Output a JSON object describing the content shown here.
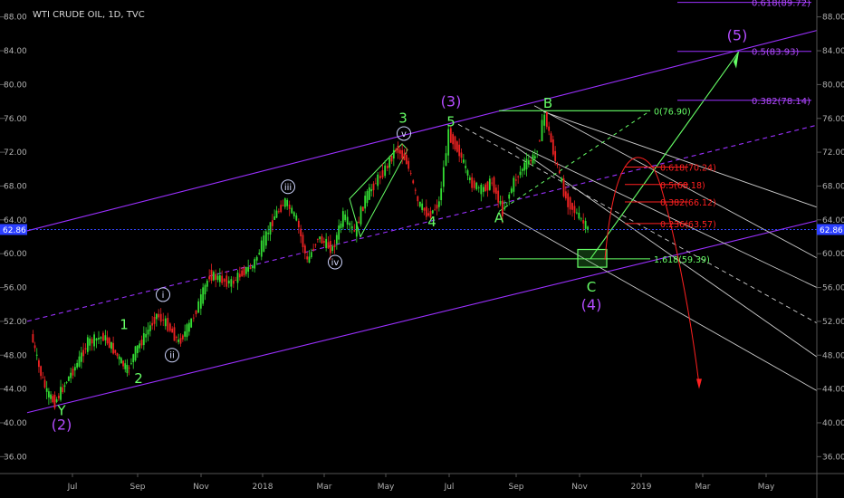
{
  "header": {
    "symbol_title": "WTI CRUDE OIL, 1D, TVC"
  },
  "colors": {
    "background": "#000000",
    "channel": "#9b30ff",
    "wave_green": "#66ff66",
    "wave_purple": "#b44cff",
    "projection_red": "#ff2020",
    "fan_white": "#cccccc",
    "price_line": "#3344ff",
    "price_badge": "#2b3fff"
  },
  "current_price": {
    "value": 62.86,
    "label": "62.86"
  },
  "chart_data": {
    "type": "line",
    "title": "WTI CRUDE OIL, 1D, TVC",
    "xlabel": "",
    "ylabel": "",
    "ylim": [
      34,
      90
    ],
    "y_ticks": [
      36,
      40,
      44,
      48,
      52,
      56,
      60,
      64,
      68,
      72,
      76,
      80,
      84,
      88
    ],
    "y_tick_labels": [
      "36.00",
      "40.00",
      "44.00",
      "48.00",
      "52.00",
      "56.00",
      "60.00",
      "64.00",
      "68.00",
      "72.00",
      "76.00",
      "80.00",
      "84.00",
      "88.00"
    ],
    "x_tick_labels": [
      "Jul",
      "Sep",
      "Nov",
      "2018",
      "Mar",
      "May",
      "Jul",
      "Sep",
      "Nov",
      "2019",
      "Mar",
      "May"
    ],
    "price_path": [
      {
        "t": "Jun-2017",
        "v": 50.5
      },
      {
        "t": "Jun-2017",
        "v": 46.5
      },
      {
        "t": "Jun-2017",
        "v": 43.5
      },
      {
        "t": "Jun-2017",
        "v": 42.4
      },
      {
        "t": "Jul-2017",
        "v": 45.0
      },
      {
        "t": "Jul-2017",
        "v": 47.0
      },
      {
        "t": "Jul-2017",
        "v": 49.5
      },
      {
        "t": "Aug-2017",
        "v": 50.2
      },
      {
        "t": "Aug-2017",
        "v": 49.0
      },
      {
        "t": "Aug-2017",
        "v": 47.5
      },
      {
        "t": "Aug-2017",
        "v": 46.2
      },
      {
        "t": "Sep-2017",
        "v": 48.5
      },
      {
        "t": "Sep-2017",
        "v": 50.5
      },
      {
        "t": "Sep-2017",
        "v": 52.8
      },
      {
        "t": "Oct-2017",
        "v": 51.5
      },
      {
        "t": "Oct-2017",
        "v": 49.5
      },
      {
        "t": "Oct-2017",
        "v": 51.5
      },
      {
        "t": "Nov-2017",
        "v": 54.0
      },
      {
        "t": "Nov-2017",
        "v": 57.5
      },
      {
        "t": "Nov-2017",
        "v": 57.0
      },
      {
        "t": "Dec-2017",
        "v": 56.5
      },
      {
        "t": "Dec-2017",
        "v": 57.8
      },
      {
        "t": "Dec-2017",
        "v": 58.5
      },
      {
        "t": "Jan-2018",
        "v": 61.5
      },
      {
        "t": "Jan-2018",
        "v": 64.5
      },
      {
        "t": "Jan-2018",
        "v": 66.2
      },
      {
        "t": "Feb-2018",
        "v": 64.0
      },
      {
        "t": "Feb-2018",
        "v": 59.0
      },
      {
        "t": "Feb-2018",
        "v": 62.0
      },
      {
        "t": "Mar-2018",
        "v": 61.5
      },
      {
        "t": "Mar-2018",
        "v": 60.5
      },
      {
        "t": "Mar-2018",
        "v": 64.5
      },
      {
        "t": "Apr-2018",
        "v": 62.5
      },
      {
        "t": "Apr-2018",
        "v": 66.5
      },
      {
        "t": "Apr-2018",
        "v": 68.5
      },
      {
        "t": "May-2018",
        "v": 70.0
      },
      {
        "t": "May-2018",
        "v": 72.5
      },
      {
        "t": "May-2018",
        "v": 71.0
      },
      {
        "t": "Jun-2018",
        "v": 66.0
      },
      {
        "t": "Jun-2018",
        "v": 64.5
      },
      {
        "t": "Jun-2018",
        "v": 66.0
      },
      {
        "t": "Jul-2018",
        "v": 74.2
      },
      {
        "t": "Jul-2018",
        "v": 72.0
      },
      {
        "t": "Jul-2018",
        "v": 68.5
      },
      {
        "t": "Aug-2018",
        "v": 67.5
      },
      {
        "t": "Aug-2018",
        "v": 68.5
      },
      {
        "t": "Aug-2018",
        "v": 65.0
      },
      {
        "t": "Sep-2018",
        "v": 68.5
      },
      {
        "t": "Sep-2018",
        "v": 70.5
      },
      {
        "t": "Sep-2018",
        "v": 71.5
      },
      {
        "t": "Oct-2018",
        "v": 76.4
      },
      {
        "t": "Oct-2018",
        "v": 71.0
      },
      {
        "t": "Oct-2018",
        "v": 66.5
      },
      {
        "t": "Nov-2018",
        "v": 62.86
      }
    ],
    "wave_labels": [
      {
        "text": "Y",
        "style": "green",
        "t": "Jun-2017",
        "v": 42.4
      },
      {
        "text": "(2)",
        "style": "purple",
        "t": "Jun-2017",
        "v": 42.4
      },
      {
        "text": "1",
        "style": "green",
        "t": "Aug-2017",
        "v": 50.2
      },
      {
        "text": "2",
        "style": "green",
        "t": "Aug-2017",
        "v": 46.2
      },
      {
        "text": "i",
        "style": "circle",
        "t": "Sep-2017",
        "v": 52.8
      },
      {
        "text": "ii",
        "style": "circle",
        "t": "Oct-2017",
        "v": 49.5
      },
      {
        "text": "iii",
        "style": "circle",
        "t": "Jan-2018",
        "v": 66.2
      },
      {
        "text": "iv",
        "style": "circle",
        "t": "Mar-2018",
        "v": 60.5
      },
      {
        "text": "v",
        "style": "circle",
        "t": "May-2018",
        "v": 72.5
      },
      {
        "text": "3",
        "style": "green",
        "t": "May-2018",
        "v": 72.5
      },
      {
        "text": "4",
        "style": "green",
        "t": "Jun-2018",
        "v": 64.5
      },
      {
        "text": "5",
        "style": "green",
        "t": "Jul-2018",
        "v": 74.2
      },
      {
        "text": "(3)",
        "style": "purple",
        "t": "Jul-2018",
        "v": 74.2
      },
      {
        "text": "A",
        "style": "green",
        "t": "Aug-2018",
        "v": 65.0
      },
      {
        "text": "B",
        "style": "green",
        "t": "Oct-2018",
        "v": 76.4
      },
      {
        "text": "C",
        "style": "green",
        "t": "Nov-2018",
        "v": 59.39
      },
      {
        "text": "(4)",
        "style": "purple",
        "t": "Nov-2018",
        "v": 59.39
      },
      {
        "text": "(5)",
        "style": "purple",
        "t": "Apr-2019",
        "v": 83.93
      }
    ],
    "fib_extension_levels": [
      {
        "label": "0.618(89.72)",
        "value": 89.72
      },
      {
        "label": "0.5(83.93)",
        "value": 83.93
      },
      {
        "label": "0.382(78.14)",
        "value": 78.14
      }
    ],
    "fib_retracement_levels": [
      {
        "label": "0.618(70.24)",
        "value": 70.24
      },
      {
        "label": "0.5(68.18)",
        "value": 68.18
      },
      {
        "label": "0.382(66.12)",
        "value": 66.12
      },
      {
        "label": "0.236(63.57)",
        "value": 63.57
      }
    ],
    "fib_target_levels": [
      {
        "label": "0(76.90)",
        "value": 76.9
      },
      {
        "label": "1.618(59.39)",
        "value": 59.39
      }
    ]
  }
}
